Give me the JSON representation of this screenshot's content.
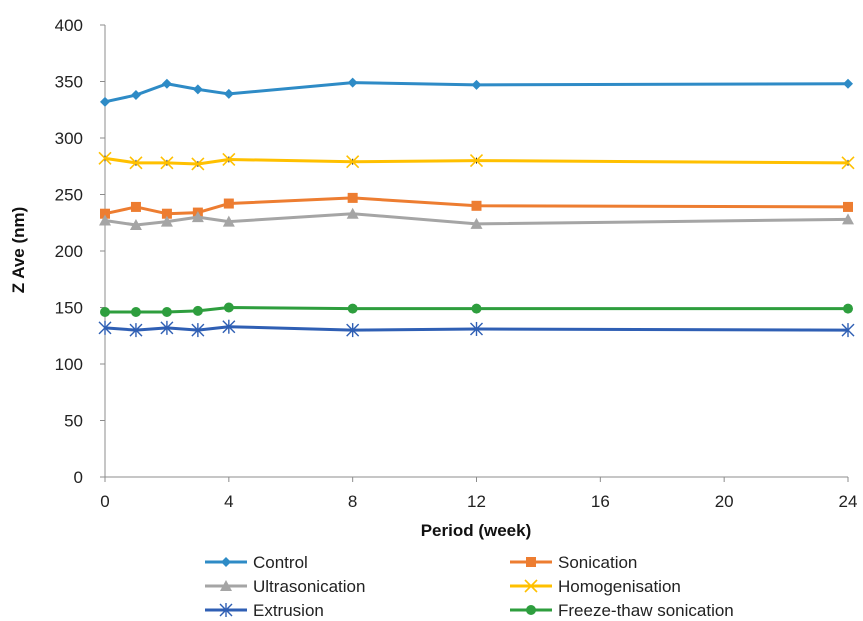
{
  "chart_data": {
    "type": "line",
    "xlabel": "Period (week)",
    "ylabel": "Z Ave (nm)",
    "xlim": [
      0,
      24
    ],
    "ylim": [
      0,
      400
    ],
    "xticks": [
      0,
      4,
      8,
      12,
      16,
      20,
      24
    ],
    "yticks": [
      0,
      50,
      100,
      150,
      200,
      250,
      300,
      350,
      400
    ],
    "x": [
      0,
      1,
      2,
      3,
      4,
      8,
      12,
      24
    ],
    "grid": false,
    "legend_position": "bottom",
    "series": [
      {
        "name": "Control",
        "color": "#2E8BC6",
        "marker": "diamond",
        "values": [
          332,
          338,
          348,
          343,
          339,
          349,
          347,
          348
        ]
      },
      {
        "name": "Sonication",
        "color": "#ED7D31",
        "marker": "square",
        "values": [
          233,
          239,
          233,
          234,
          242,
          247,
          240,
          239
        ]
      },
      {
        "name": "Ultrasonication",
        "color": "#A5A5A5",
        "marker": "triangle",
        "values": [
          227,
          223,
          226,
          230,
          226,
          233,
          224,
          228
        ]
      },
      {
        "name": "Homogenisation",
        "color": "#FFC000",
        "marker": "x",
        "values": [
          282,
          278,
          278,
          277,
          281,
          279,
          280,
          278
        ]
      },
      {
        "name": "Extrusion",
        "color": "#2F5FB4",
        "marker": "star",
        "values": [
          132,
          130,
          132,
          130,
          133,
          130,
          131,
          130
        ]
      },
      {
        "name": "Freeze-thaw sonication",
        "color": "#2E9E3E",
        "marker": "circle",
        "values": [
          146,
          146,
          146,
          147,
          150,
          149,
          149,
          149
        ]
      }
    ]
  }
}
